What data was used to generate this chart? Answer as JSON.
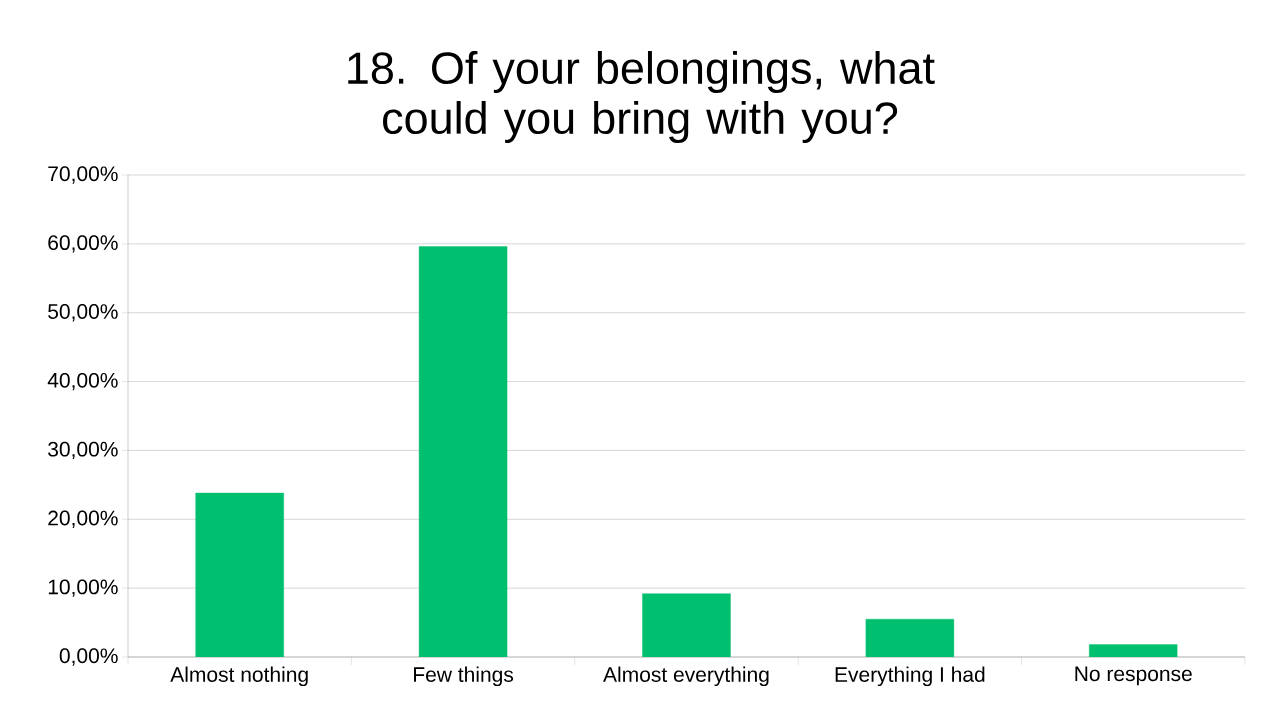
{
  "chart_data": {
    "type": "bar",
    "title": "18. Of your belongings, what could you bring with you?",
    "categories": [
      "Almost nothing",
      "Few things",
      "Almost everything",
      "Everything I had",
      "No response"
    ],
    "values": [
      23.8,
      59.6,
      9.2,
      5.5,
      1.8
    ],
    "color": "#00bf6f",
    "ylim": [
      0,
      70
    ],
    "yticks": [
      {
        "value": 0,
        "label": "0,00%"
      },
      {
        "value": 10,
        "label": "10,00%"
      },
      {
        "value": 20,
        "label": "20,00%"
      },
      {
        "value": 30,
        "label": "30,00%"
      },
      {
        "value": 40,
        "label": "40,00%"
      },
      {
        "value": 50,
        "label": "50,00%"
      },
      {
        "value": 60,
        "label": "60,00%"
      },
      {
        "value": 70,
        "label": "70,00%"
      }
    ],
    "grid": "y"
  }
}
